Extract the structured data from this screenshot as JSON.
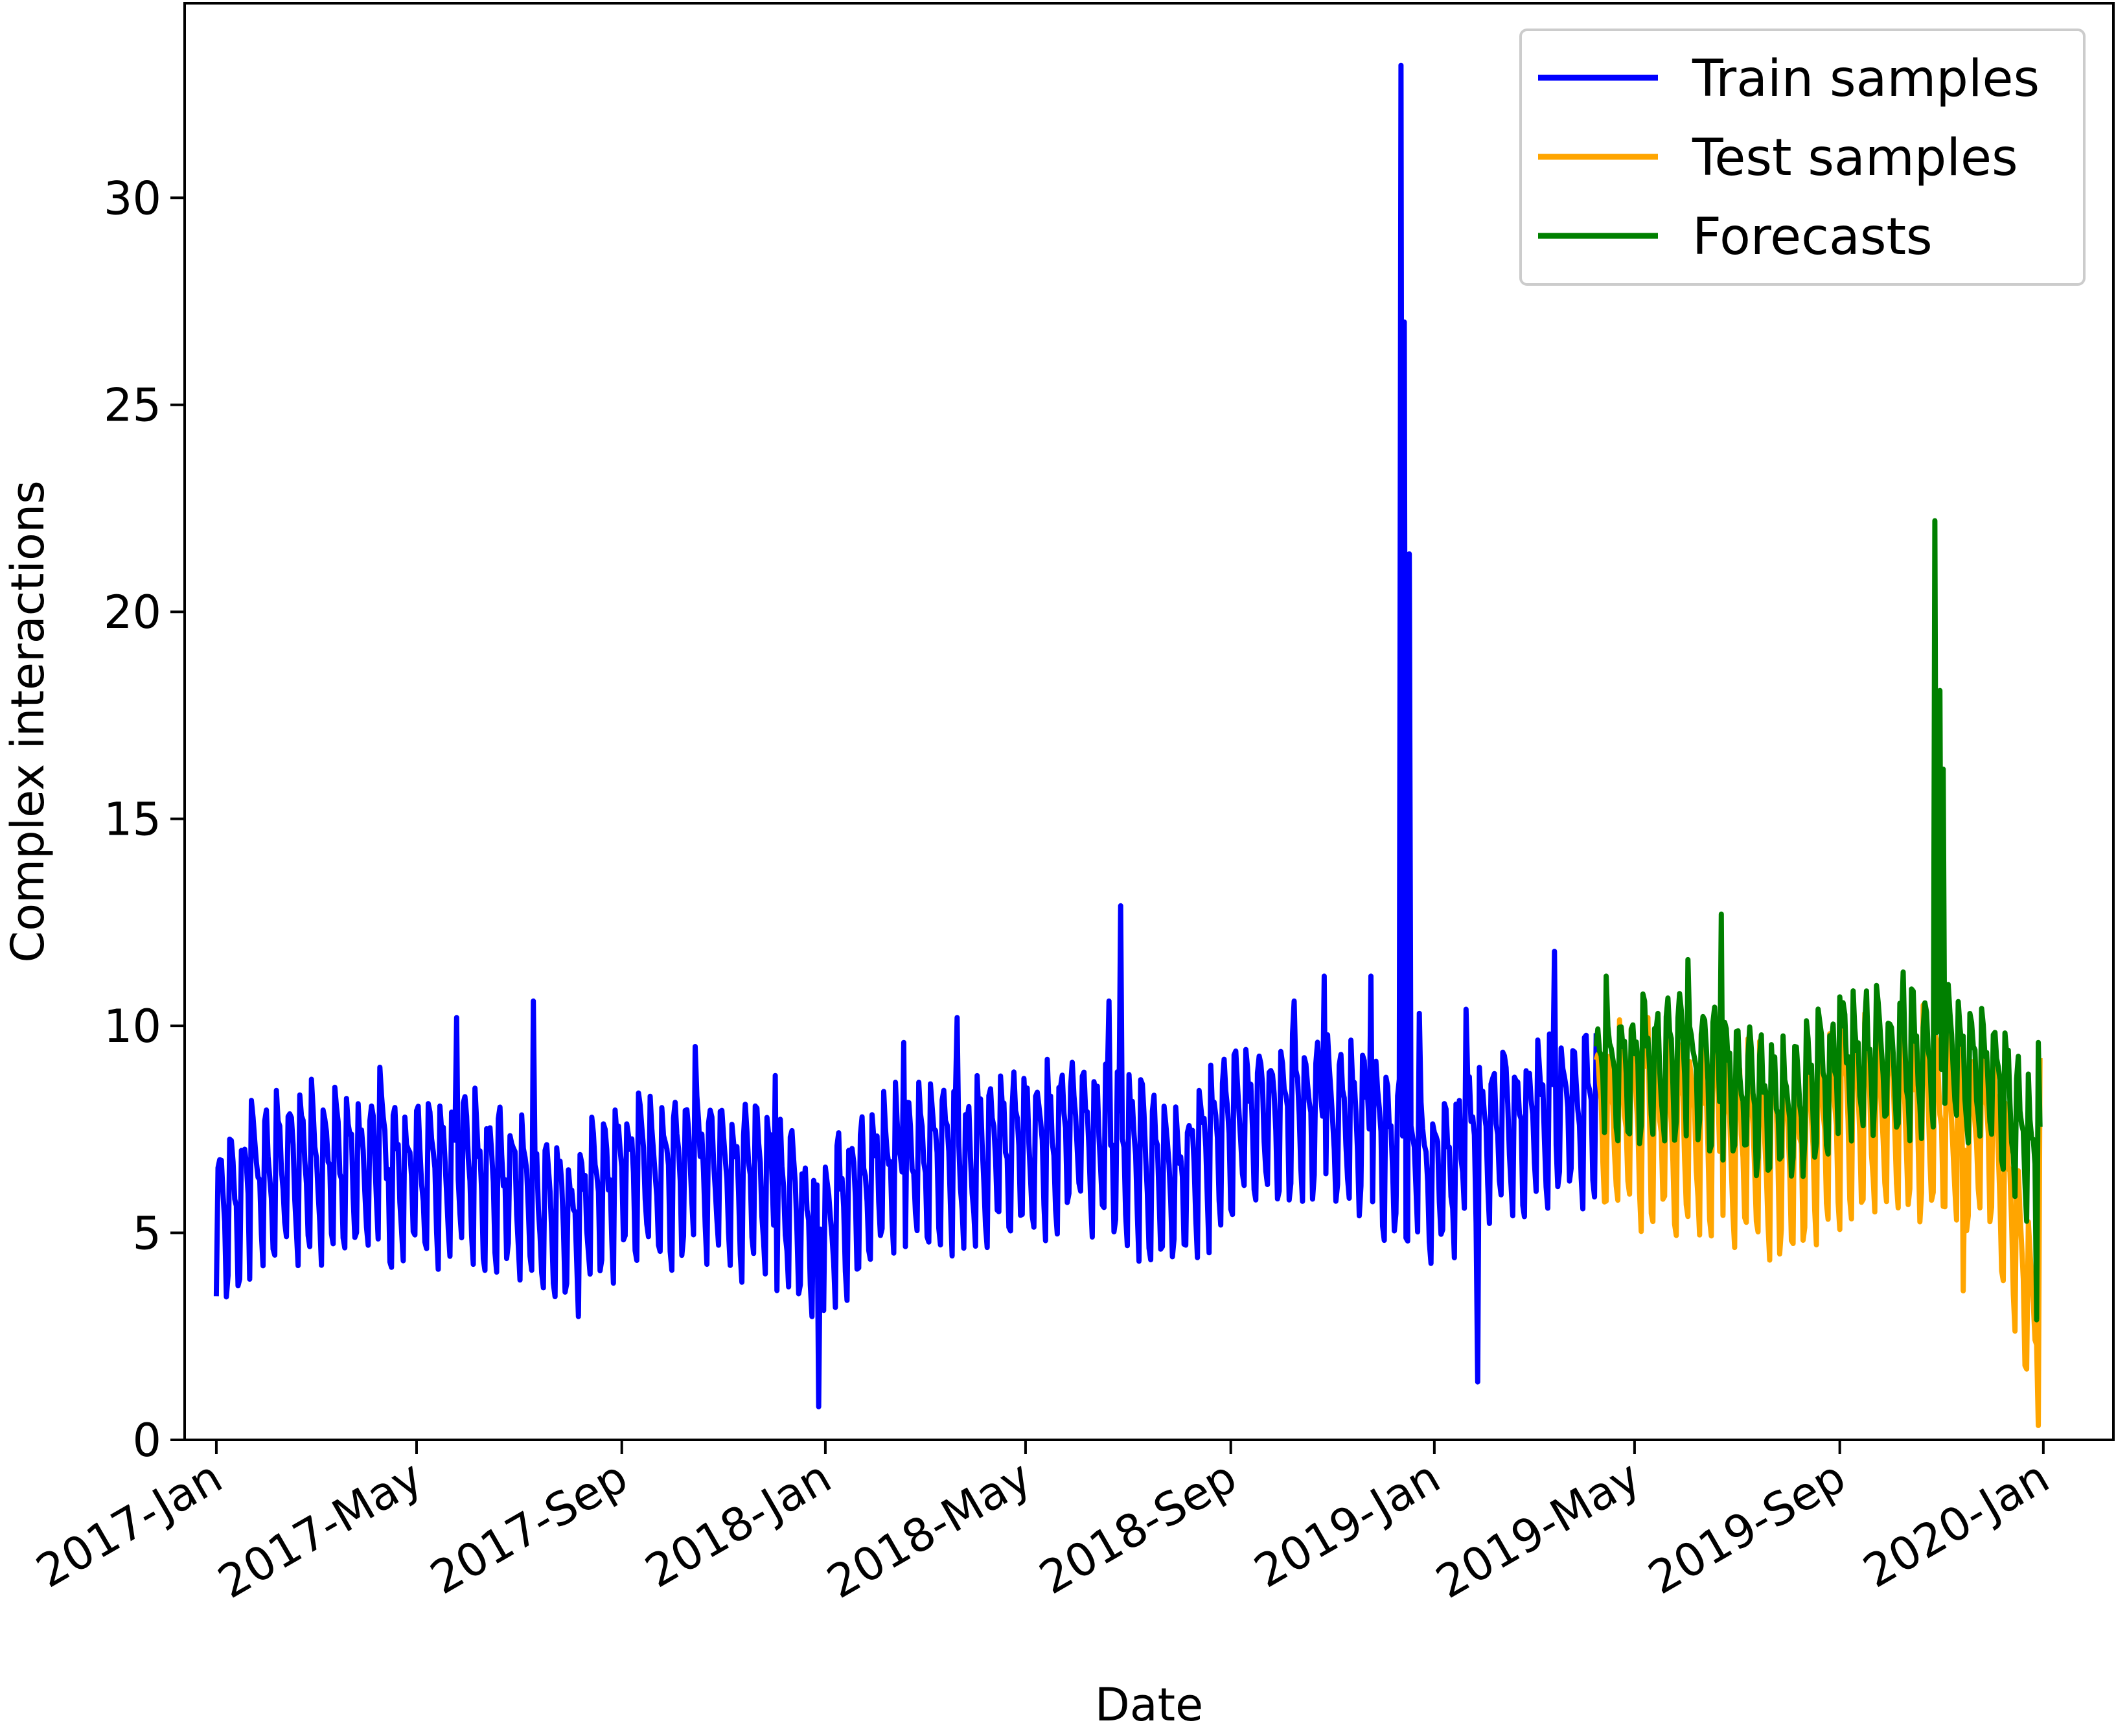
{
  "chart_data": {
    "type": "line",
    "title": "",
    "xlabel": "Date",
    "ylabel": "Complex interactions",
    "ylim": [
      0,
      34.7
    ],
    "yticks": [
      0,
      5,
      10,
      15,
      20,
      25,
      30
    ],
    "ytick_labels": [
      "0",
      "5",
      "10",
      "15",
      "20",
      "25",
      "30"
    ],
    "xticks": [
      "2017-01-01",
      "2017-05-01",
      "2017-09-01",
      "2018-01-01",
      "2018-05-01",
      "2018-09-01",
      "2019-01-01",
      "2019-05-01",
      "2019-09-01",
      "2020-01-01"
    ],
    "xtick_labels": [
      "2017-Jan",
      "2017-May",
      "2017-Sep",
      "2018-Jan",
      "2018-May",
      "2018-Sep",
      "2019-Jan",
      "2019-May",
      "2019-Sep",
      "2020-Jan"
    ],
    "xlim": [
      "2016-12-13",
      "2020-02-12"
    ],
    "legend_position": "top-right",
    "series": [
      {
        "name": "Train samples",
        "color": "#0000ff",
        "start": "2017-01-01",
        "step_days": 1,
        "anchors": [
          [
            "2017-01-01",
            5.3
          ],
          [
            "2017-02-01",
            6.4
          ],
          [
            "2017-03-01",
            6.8
          ],
          [
            "2017-04-01",
            6.5
          ],
          [
            "2017-05-01",
            6.4
          ],
          [
            "2017-06-01",
            6.7
          ],
          [
            "2017-07-01",
            6.1
          ],
          [
            "2017-08-01",
            5.3
          ],
          [
            "2017-09-01",
            6.5
          ],
          [
            "2017-10-01",
            6.6
          ],
          [
            "2017-11-01",
            6.5
          ],
          [
            "2017-12-01",
            6.1
          ],
          [
            "2017-12-25",
            5.2
          ],
          [
            "2018-01-01",
            5.4
          ],
          [
            "2018-02-01",
            6.6
          ],
          [
            "2018-03-01",
            6.8
          ],
          [
            "2018-04-01",
            6.9
          ],
          [
            "2018-05-01",
            7.2
          ],
          [
            "2018-06-01",
            7.6
          ],
          [
            "2018-07-01",
            7.0
          ],
          [
            "2018-08-01",
            6.3
          ],
          [
            "2018-09-01",
            7.6
          ],
          [
            "2018-10-01",
            8.0
          ],
          [
            "2018-11-01",
            7.9
          ],
          [
            "2018-12-01",
            7.4
          ],
          [
            "2019-01-01",
            6.4
          ],
          [
            "2019-02-01",
            7.6
          ],
          [
            "2019-03-01",
            8.0
          ],
          [
            "2019-04-08",
            8.1
          ]
        ],
        "weekly_pattern": [
          1.45,
          1.25,
          0.8,
          0.3,
          -0.4,
          -1.7,
          -2.0
        ],
        "spikes": [
          [
            "2017-01-22",
            8.2
          ],
          [
            "2017-04-09",
            9.0
          ],
          [
            "2017-05-25",
            10.2
          ],
          [
            "2017-07-10",
            10.6
          ],
          [
            "2017-10-15",
            9.5
          ],
          [
            "2017-12-02",
            8.8
          ],
          [
            "2017-12-28",
            0.8
          ],
          [
            "2018-02-17",
            9.6
          ],
          [
            "2018-03-21",
            10.2
          ],
          [
            "2018-06-20",
            10.6
          ],
          [
            "2018-06-27",
            12.9
          ],
          [
            "2018-10-09",
            10.6
          ],
          [
            "2018-10-27",
            11.2
          ],
          [
            "2018-11-24",
            11.2
          ],
          [
            "2018-12-12",
            33.2
          ],
          [
            "2018-12-14",
            27.0
          ],
          [
            "2018-12-17",
            21.4
          ],
          [
            "2018-12-23",
            10.3
          ],
          [
            "2019-01-20",
            10.4
          ],
          [
            "2019-01-27",
            1.4
          ],
          [
            "2019-03-14",
            11.8
          ]
        ]
      },
      {
        "name": "Test samples",
        "color": "#ffa500",
        "start": "2019-04-08",
        "step_days": 1,
        "anchors": [
          [
            "2019-04-08",
            7.6
          ],
          [
            "2019-05-01",
            7.9
          ],
          [
            "2019-06-01",
            7.6
          ],
          [
            "2019-07-01",
            7.4
          ],
          [
            "2019-08-01",
            7.0
          ],
          [
            "2019-09-01",
            7.9
          ],
          [
            "2019-10-01",
            8.0
          ],
          [
            "2019-11-01",
            7.8
          ],
          [
            "2019-12-01",
            7.6
          ],
          [
            "2019-12-29",
            2.4
          ],
          [
            "2019-12-30",
            6.9
          ]
        ],
        "weekly_pattern": [
          1.9,
          1.6,
          1.1,
          0.4,
          -0.6,
          -2.1,
          -2.3
        ],
        "spikes": [
          [
            "2019-05-09",
            10.2
          ],
          [
            "2019-06-22",
            9.9
          ],
          [
            "2019-09-16",
            10.3
          ],
          [
            "2019-10-21",
            10.5
          ],
          [
            "2019-11-14",
            3.6
          ],
          [
            "2019-12-28",
            2.3
          ]
        ]
      },
      {
        "name": "Forecasts",
        "color": "#008000",
        "start": "2019-04-08",
        "step_days": 1,
        "anchors": [
          [
            "2019-04-08",
            8.7
          ],
          [
            "2019-05-01",
            9.0
          ],
          [
            "2019-06-01",
            9.2
          ],
          [
            "2019-07-01",
            8.6
          ],
          [
            "2019-08-01",
            7.9
          ],
          [
            "2019-09-01",
            9.2
          ],
          [
            "2019-10-01",
            9.3
          ],
          [
            "2019-11-01",
            9.1
          ],
          [
            "2019-12-01",
            9.0
          ],
          [
            "2019-12-30",
            6.6
          ]
        ],
        "weekly_pattern": [
          1.3,
          1.1,
          0.7,
          0.2,
          -0.4,
          -1.4,
          -1.5
        ],
        "spikes": [
          [
            "2019-04-14",
            11.2
          ],
          [
            "2019-06-02",
            11.6
          ],
          [
            "2019-06-22",
            12.7
          ],
          [
            "2019-09-01",
            10.7
          ],
          [
            "2019-10-09",
            11.3
          ],
          [
            "2019-10-28",
            22.2
          ],
          [
            "2019-10-31",
            18.1
          ],
          [
            "2019-11-02",
            16.2
          ],
          [
            "2019-11-05",
            11.0
          ],
          [
            "2019-12-28",
            2.9
          ],
          [
            "2019-12-29",
            9.6
          ]
        ]
      }
    ]
  }
}
